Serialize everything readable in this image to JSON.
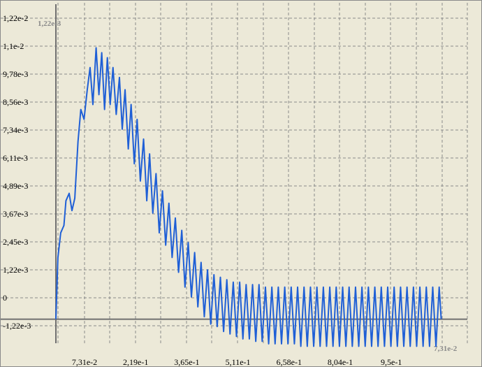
{
  "chart_data": {
    "type": "line",
    "title": "",
    "xlabel": "",
    "ylabel": "",
    "x_axis_name": "7,31e-2",
    "y_axis_name": "1,22e-3",
    "x_tick_labels": [
      "7,31e-2",
      "2,19e-1",
      "3,65e-1",
      "5,11e-1",
      "6,58e-1",
      "8,04e-1",
      "9,5e-1"
    ],
    "y_tick_labels": [
      "1,22e-2",
      "1,1e-2",
      "9,78e-3",
      "8,56e-3",
      "7,34e-3",
      "6,11e-3",
      "4,89e-3",
      "3,67e-3",
      "2,45e-3",
      "1,22e-3",
      "0",
      "-1,22e-3"
    ],
    "xlim": [
      0,
      1.023
    ],
    "ylim": [
      -0.0014,
      0.0122
    ],
    "grid": true,
    "series": [
      {
        "color": "#1f5fd6",
        "points": [
          [
            0.0,
            0.0
          ],
          [
            0.005,
            0.0025
          ],
          [
            0.012,
            0.0035
          ],
          [
            0.02,
            0.0038
          ],
          [
            0.025,
            0.0048
          ],
          [
            0.033,
            0.0051
          ],
          [
            0.04,
            0.0044
          ],
          [
            0.047,
            0.0049
          ],
          [
            0.055,
            0.0072
          ],
          [
            0.062,
            0.0085
          ],
          [
            0.07,
            0.0081
          ],
          [
            0.078,
            0.0093
          ],
          [
            0.085,
            0.0102
          ],
          [
            0.092,
            0.0087
          ],
          [
            0.1,
            0.011
          ],
          [
            0.107,
            0.0091
          ],
          [
            0.114,
            0.0108
          ],
          [
            0.121,
            0.0085
          ],
          [
            0.128,
            0.0106
          ],
          [
            0.135,
            0.0087
          ],
          [
            0.142,
            0.0102
          ],
          [
            0.15,
            0.0083
          ],
          [
            0.158,
            0.0098
          ],
          [
            0.165,
            0.0077
          ],
          [
            0.172,
            0.0093
          ],
          [
            0.18,
            0.0069
          ],
          [
            0.187,
            0.0087
          ],
          [
            0.195,
            0.0063
          ],
          [
            0.202,
            0.0081
          ],
          [
            0.21,
            0.0056
          ],
          [
            0.218,
            0.0073
          ],
          [
            0.226,
            0.0048
          ],
          [
            0.233,
            0.0067
          ],
          [
            0.241,
            0.0043
          ],
          [
            0.249,
            0.0059
          ],
          [
            0.257,
            0.0035
          ],
          [
            0.265,
            0.0052
          ],
          [
            0.273,
            0.003
          ],
          [
            0.281,
            0.0047
          ],
          [
            0.289,
            0.0025
          ],
          [
            0.297,
            0.0041
          ],
          [
            0.305,
            0.0019
          ],
          [
            0.313,
            0.0036
          ],
          [
            0.321,
            0.0013
          ],
          [
            0.329,
            0.0031
          ],
          [
            0.337,
            0.0009
          ],
          [
            0.345,
            0.0027
          ],
          [
            0.353,
            0.0005
          ],
          [
            0.361,
            0.0023
          ],
          [
            0.369,
            0.0001
          ],
          [
            0.377,
            0.002
          ],
          [
            0.385,
            -0.0002
          ],
          [
            0.393,
            0.0018
          ],
          [
            0.401,
            -0.0003
          ],
          [
            0.409,
            0.0017
          ],
          [
            0.417,
            -0.0005
          ],
          [
            0.425,
            0.0016
          ],
          [
            0.433,
            -0.0006
          ],
          [
            0.441,
            0.0015
          ],
          [
            0.449,
            -0.0007
          ],
          [
            0.457,
            0.0015
          ],
          [
            0.465,
            -0.0008
          ],
          [
            0.473,
            0.0014
          ],
          [
            0.481,
            -0.0008
          ],
          [
            0.489,
            0.0014
          ],
          [
            0.497,
            -0.0009
          ],
          [
            0.505,
            0.0014
          ],
          [
            0.513,
            -0.0009
          ],
          [
            0.521,
            0.0013
          ],
          [
            0.529,
            -0.001
          ],
          [
            0.537,
            0.0013
          ],
          [
            0.545,
            -0.001
          ],
          [
            0.553,
            0.0013
          ],
          [
            0.561,
            -0.001
          ],
          [
            0.569,
            0.0013
          ],
          [
            0.577,
            -0.001
          ],
          [
            0.585,
            0.0013
          ],
          [
            0.593,
            -0.001
          ],
          [
            0.601,
            0.0013
          ],
          [
            0.609,
            -0.0011
          ],
          [
            0.617,
            0.0013
          ],
          [
            0.625,
            -0.0011
          ],
          [
            0.633,
            0.0013
          ],
          [
            0.641,
            -0.0011
          ],
          [
            0.649,
            0.0013
          ],
          [
            0.657,
            -0.0011
          ],
          [
            0.665,
            0.0013
          ],
          [
            0.673,
            -0.0011
          ],
          [
            0.681,
            0.0013
          ],
          [
            0.689,
            -0.0011
          ],
          [
            0.697,
            0.0013
          ],
          [
            0.705,
            -0.0011
          ],
          [
            0.713,
            0.0013
          ],
          [
            0.721,
            -0.0011
          ],
          [
            0.729,
            0.0013
          ],
          [
            0.737,
            -0.0011
          ],
          [
            0.745,
            0.0013
          ],
          [
            0.753,
            -0.0011
          ],
          [
            0.761,
            0.0013
          ],
          [
            0.769,
            -0.0011
          ],
          [
            0.777,
            0.0013
          ],
          [
            0.785,
            -0.0011
          ],
          [
            0.793,
            0.0013
          ],
          [
            0.801,
            -0.0011
          ],
          [
            0.809,
            0.0013
          ],
          [
            0.817,
            -0.0011
          ],
          [
            0.825,
            0.0013
          ],
          [
            0.833,
            -0.0011
          ],
          [
            0.841,
            0.0013
          ],
          [
            0.849,
            -0.0011
          ],
          [
            0.857,
            0.0013
          ],
          [
            0.865,
            -0.0011
          ],
          [
            0.873,
            0.0013
          ],
          [
            0.881,
            -0.0011
          ],
          [
            0.889,
            0.0013
          ],
          [
            0.897,
            -0.0011
          ],
          [
            0.905,
            0.0013
          ],
          [
            0.913,
            -0.0011
          ],
          [
            0.921,
            0.0013
          ],
          [
            0.929,
            -0.0011
          ],
          [
            0.937,
            0.0013
          ],
          [
            0.945,
            -0.0011
          ],
          [
            0.953,
            0.0013
          ],
          [
            0.958,
            0.0
          ]
        ]
      }
    ]
  }
}
